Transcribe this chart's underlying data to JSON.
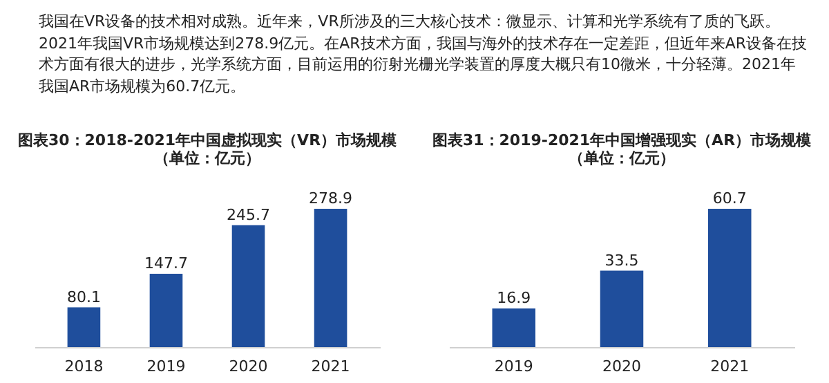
{
  "chart_data": [
    {
      "type": "other",
      "annotations": [
        "我国在VR设备的技术相对成熟。近年来，VR所涉及的三大核心技术：微显示、计算和光学系统有了质的飞跃。",
        "2021年我国VR市场规模达到278.9亿元。在AR技术方面，我国与海外的技术存在一定差距，但近年来AR设备在技",
        "术方面有很大的进步，光学系统方面，目前运用的衍射光栅光学装置的厚度大概只有10微米，十分轻薄。2021年",
        "我国AR市场规模为60.7亿元。"
      ]
    },
    {
      "type": "bar",
      "title": "图表30：2018-2021年中国虚拟现实（VR）市场规模",
      "subtitle": "（单位：亿元）",
      "categories": [
        "2018",
        "2019",
        "2020",
        "2021"
      ],
      "values": [
        80.1,
        147.7,
        245.7,
        278.9
      ],
      "color": "#1f4e9c",
      "data_labels": true
    },
    {
      "type": "bar",
      "title": "图表31：2019-2021年中国增强现实（AR）市场规模",
      "subtitle": "（单位：亿元）",
      "categories": [
        "2019",
        "2020",
        "2021"
      ],
      "values": [
        16.9,
        33.5,
        60.7
      ],
      "color": "#1f4e9c",
      "data_labels": true
    }
  ]
}
